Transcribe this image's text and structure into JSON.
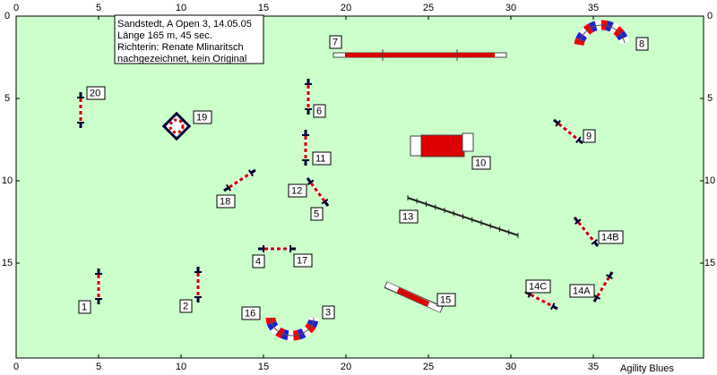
{
  "info": [
    "Sandstedt, A Open 3, 14.05.05",
    "Länge 165 m,  45 sec.",
    "Richterin: Renate Mlinaritsch",
    "nachgezeichnet, kein Original"
  ],
  "grid": {
    "xticks": [
      0,
      5,
      10,
      15,
      20,
      25,
      30,
      35
    ],
    "yticks": [
      0,
      5,
      10,
      15
    ]
  },
  "obstacles": [
    {
      "label": "1"
    },
    {
      "label": "2"
    },
    {
      "label": "3"
    },
    {
      "label": "4"
    },
    {
      "label": "5"
    },
    {
      "label": "6"
    },
    {
      "label": "7"
    },
    {
      "label": "8"
    },
    {
      "label": "9"
    },
    {
      "label": "10"
    },
    {
      "label": "11"
    },
    {
      "label": "12"
    },
    {
      "label": "13"
    },
    {
      "label": "14A"
    },
    {
      "label": "14B"
    },
    {
      "label": "14C"
    },
    {
      "label": "15"
    },
    {
      "label": "16"
    },
    {
      "label": "17"
    },
    {
      "label": "18"
    },
    {
      "label": "19"
    },
    {
      "label": "20"
    }
  ],
  "footer": "Agility Blues"
}
